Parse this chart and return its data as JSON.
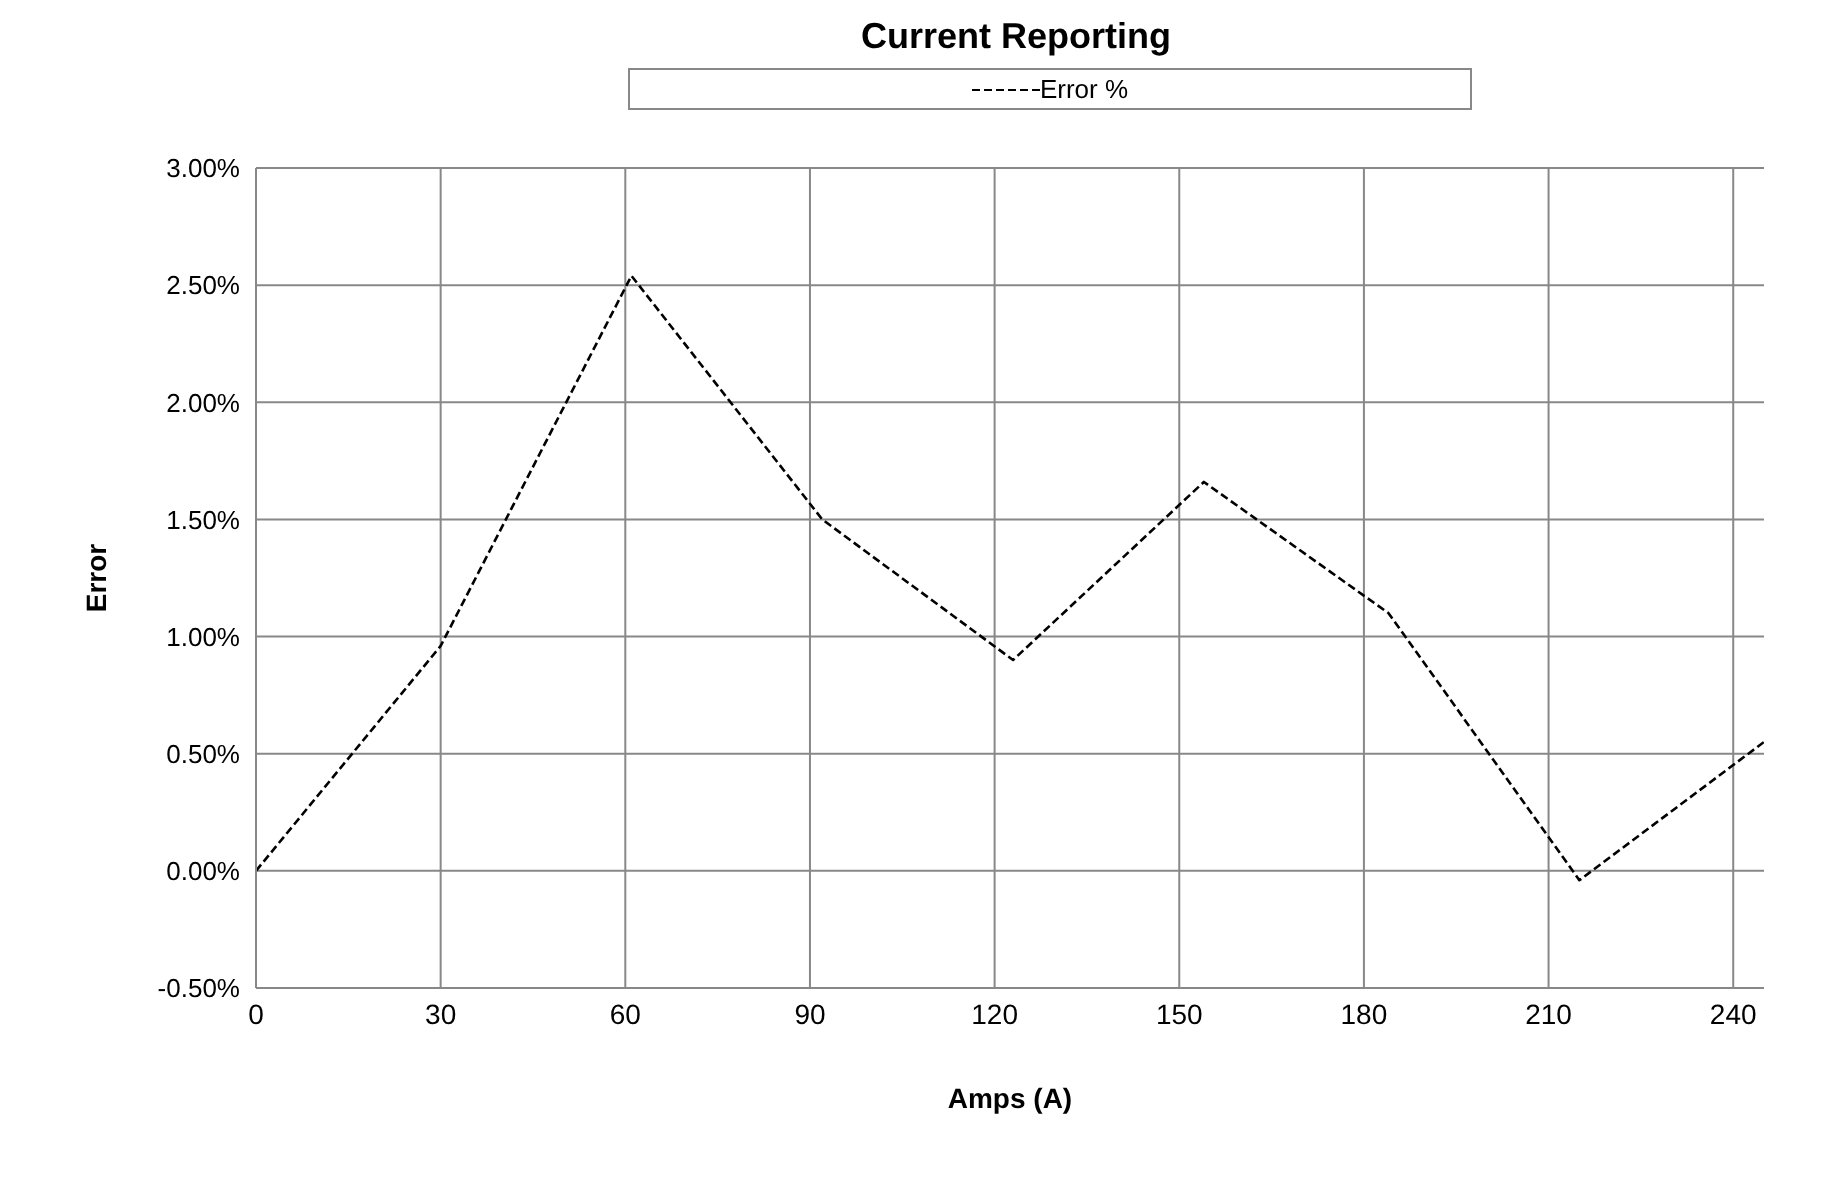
{
  "chart_data": {
    "type": "line",
    "title": "Current Reporting",
    "xlabel": "Amps (A)",
    "ylabel": "Error",
    "x": [
      0,
      30,
      61,
      92,
      123,
      154,
      184,
      215,
      245
    ],
    "series": [
      {
        "name": "Error %",
        "color": "#000000",
        "values": [
          0,
          0.96,
          2.54,
          1.5,
          0.9,
          1.66,
          1.1,
          -0.04,
          0.55
        ]
      }
    ],
    "xlim": [
      0,
      245
    ],
    "xticks": [
      0,
      30,
      60,
      90,
      120,
      150,
      180,
      210,
      240
    ],
    "ylim": [
      -0.5,
      3
    ],
    "yticks": [
      {
        "value": -0.5,
        "label": "-0.50%"
      },
      {
        "value": 0,
        "label": "0.00%"
      },
      {
        "value": 0.5,
        "label": "0.50%"
      },
      {
        "value": 1,
        "label": "1.00%"
      },
      {
        "value": 1.5,
        "label": "1.50%"
      },
      {
        "value": 2,
        "label": "2.00%"
      },
      {
        "value": 2.5,
        "label": "2.50%"
      },
      {
        "value": 3,
        "label": "3.00%"
      }
    ],
    "grid": true,
    "legend": "top",
    "marker": "none",
    "line_style": "dashed"
  }
}
